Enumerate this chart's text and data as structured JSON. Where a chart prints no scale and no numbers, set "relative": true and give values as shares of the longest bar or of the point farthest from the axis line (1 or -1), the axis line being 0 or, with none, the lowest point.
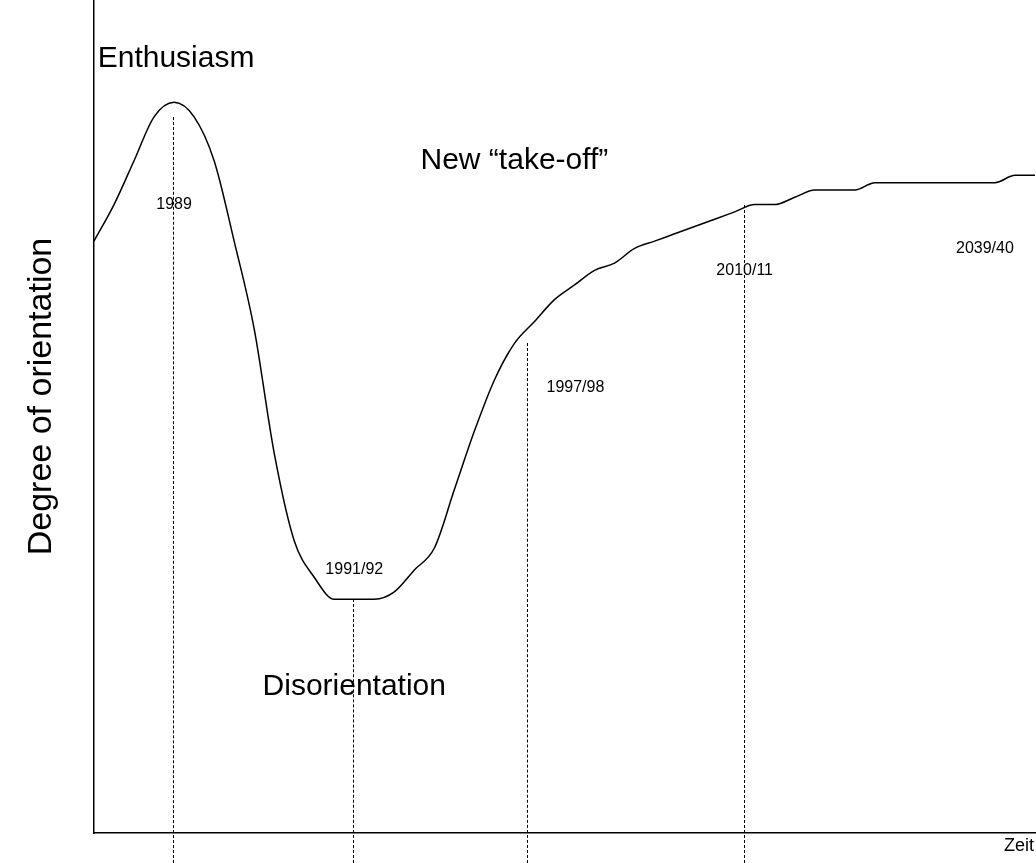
{
  "chart_data": {
    "type": "line",
    "relative": true,
    "tick_labels": false,
    "grid": false,
    "legend": false,
    "marker": "none",
    "line_style": "solid",
    "ylabel": "Degree of orientation",
    "xlabel": "Zeit",
    "categories": [
      null,
      null,
      null,
      null,
      null,
      null,
      null,
      null,
      null,
      null,
      null,
      null,
      null,
      null,
      null,
      null,
      null,
      null,
      null,
      null,
      null,
      null,
      null,
      null,
      null,
      null,
      null,
      null,
      null,
      null,
      null,
      null,
      null,
      null,
      null,
      null,
      null,
      null,
      null,
      null,
      null,
      null,
      null,
      null,
      null,
      null,
      null,
      null
    ],
    "series": [
      {
        "color": "#000000",
        "values": [
          0.81,
          0.86,
          0.92,
          0.98,
          1.0,
          0.98,
          0.92,
          0.81,
          0.69,
          0.52,
          0.4,
          0.35,
          0.32,
          0.32,
          0.32,
          0.33,
          0.36,
          0.39,
          0.47,
          0.55,
          0.62,
          0.67,
          0.7,
          0.73,
          0.75,
          0.77,
          0.78,
          0.8,
          0.81,
          0.82,
          0.83,
          0.84,
          0.85,
          0.86,
          0.86,
          0.87,
          0.88,
          0.88,
          0.88,
          0.89,
          0.89,
          0.89,
          0.89,
          0.89,
          0.89,
          0.89,
          0.9,
          0.9
        ]
      }
    ],
    "annotations": [
      "Enthusiasm",
      "1989",
      "1991/92",
      "Disorientation",
      "1997/98",
      "New “take-off”",
      "2010/11",
      "2039/40"
    ]
  }
}
